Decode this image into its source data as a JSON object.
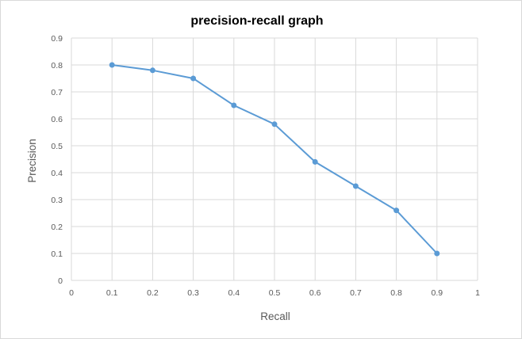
{
  "chart_data": {
    "type": "line",
    "title": "precision-recall graph",
    "xlabel": "Recall",
    "ylabel": "Precision",
    "xlim": [
      0,
      1
    ],
    "ylim": [
      0,
      0.9
    ],
    "x_ticks": [
      "0",
      "0.1",
      "0.2",
      "0.3",
      "0.4",
      "0.5",
      "0.6",
      "0.7",
      "0.8",
      "0.9",
      "1"
    ],
    "y_ticks": [
      "0",
      "0.1",
      "0.2",
      "0.3",
      "0.4",
      "0.5",
      "0.6",
      "0.7",
      "0.8",
      "0.9"
    ],
    "grid": true,
    "legend": "none",
    "colors": {
      "series": "#5b9bd5",
      "grid": "#d9d9d9",
      "text": "#595959"
    },
    "series": [
      {
        "x": [
          0.1,
          0.2,
          0.3,
          0.4,
          0.5,
          0.6,
          0.7,
          0.8,
          0.9
        ],
        "y": [
          0.8,
          0.78,
          0.75,
          0.65,
          0.58,
          0.44,
          0.35,
          0.26,
          0.1
        ]
      }
    ]
  }
}
